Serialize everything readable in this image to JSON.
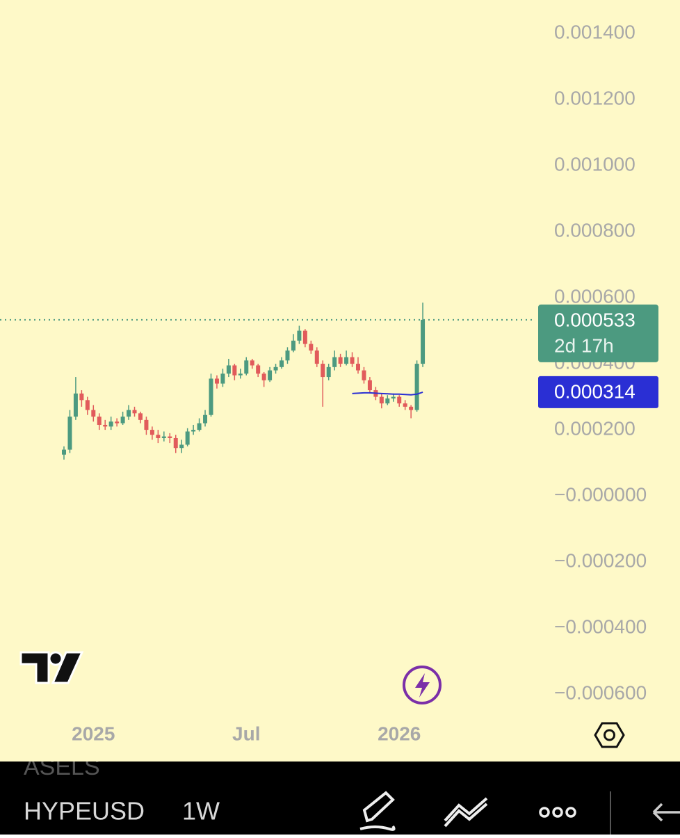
{
  "chart_data": {
    "type": "candlestick",
    "categories": [
      null,
      null,
      null,
      null,
      null,
      "2025",
      null,
      null,
      null,
      null,
      null,
      null,
      null,
      null,
      null,
      null,
      null,
      null,
      null,
      null,
      null,
      null,
      null,
      null,
      null,
      null,
      null,
      null,
      null,
      null,
      null,
      "Jul",
      null,
      null,
      null,
      null,
      null,
      null,
      null,
      null,
      null,
      null,
      null,
      null,
      null,
      null,
      null,
      null,
      null,
      null,
      null,
      null,
      null,
      null,
      null,
      null,
      null,
      "2026",
      null,
      null,
      null,
      null
    ],
    "open": [
      0.000125,
      0.00014,
      0.00024,
      0.00031,
      0.00029,
      0.00026,
      0.00024,
      0.000215,
      0.00021,
      0.000225,
      0.00022,
      0.00024,
      0.00026,
      0.00025,
      0.00023,
      0.0002,
      0.000185,
      0.000175,
      0.00018,
      0.000175,
      0.000145,
      0.000155,
      0.000195,
      0.0002,
      0.00022,
      0.000245,
      0.000355,
      0.00034,
      0.00037,
      0.000395,
      0.000365,
      0.00037,
      0.00041,
      0.000395,
      0.00037,
      0.00035,
      0.00038,
      0.00039,
      0.00041,
      0.00044,
      0.00047,
      0.0005,
      0.00046,
      0.00044,
      0.0004,
      0.00036,
      0.00039,
      0.00042,
      0.0004,
      0.00042,
      0.0004,
      0.00038,
      0.00035,
      0.00032,
      0.0003,
      0.00028,
      0.000295,
      0.0003,
      0.00028,
      0.00027,
      0.00026,
      0.0004
    ],
    "high": [
      0.00015,
      0.00026,
      0.00036,
      0.00032,
      0.0003,
      0.000275,
      0.00025,
      0.00023,
      0.00024,
      0.000235,
      0.000255,
      0.000275,
      0.00027,
      0.000255,
      0.00024,
      0.00021,
      0.0002,
      0.000195,
      0.00019,
      0.000185,
      0.00017,
      0.000205,
      0.000215,
      0.000235,
      0.00026,
      0.00037,
      0.000365,
      0.000385,
      0.000415,
      0.0004,
      0.000385,
      0.00042,
      0.000415,
      0.0004,
      0.000375,
      0.00039,
      0.0004,
      0.00042,
      0.00045,
      0.00049,
      0.000515,
      0.000505,
      0.00047,
      0.00045,
      0.00041,
      0.0004,
      0.00044,
      0.00043,
      0.00044,
      0.000435,
      0.00042,
      0.00039,
      0.00036,
      0.00033,
      0.00031,
      0.000305,
      0.00031,
      0.000305,
      0.00029,
      0.000275,
      0.00041,
      0.000585
    ],
    "low": [
      0.00011,
      0.00013,
      0.00023,
      0.00027,
      0.000245,
      0.000225,
      0.0002,
      0.0002,
      0.0002,
      0.00021,
      0.000215,
      0.00023,
      0.00024,
      0.00022,
      0.000185,
      0.00017,
      0.00016,
      0.000165,
      0.00016,
      0.00013,
      0.00013,
      0.00015,
      0.000185,
      0.000195,
      0.00021,
      0.00024,
      0.000325,
      0.00033,
      0.00036,
      0.00035,
      0.000355,
      0.000365,
      0.000385,
      0.00036,
      0.00033,
      0.000345,
      0.00037,
      0.000385,
      0.0004,
      0.000435,
      0.00046,
      0.00045,
      0.00043,
      0.00039,
      0.00027,
      0.00035,
      0.00038,
      0.00039,
      0.000395,
      0.00039,
      0.00037,
      0.00034,
      0.00031,
      0.00029,
      0.000265,
      0.000275,
      0.000285,
      0.00027,
      0.00026,
      0.000235,
      0.000255,
      0.00039
    ],
    "close": [
      0.00014,
      0.00024,
      0.00031,
      0.00029,
      0.00026,
      0.00024,
      0.000215,
      0.00021,
      0.000225,
      0.00022,
      0.00024,
      0.00026,
      0.00025,
      0.00023,
      0.0002,
      0.000185,
      0.000175,
      0.00018,
      0.000175,
      0.000145,
      0.000155,
      0.000195,
      0.0002,
      0.00022,
      0.000245,
      0.000355,
      0.00034,
      0.00037,
      0.000395,
      0.000365,
      0.00037,
      0.00041,
      0.000395,
      0.00037,
      0.00035,
      0.00038,
      0.00039,
      0.00041,
      0.00044,
      0.00047,
      0.0005,
      0.00046,
      0.00044,
      0.0004,
      0.00036,
      0.00039,
      0.00042,
      0.0004,
      0.00042,
      0.0004,
      0.00038,
      0.00035,
      0.00032,
      0.0003,
      0.00028,
      0.000295,
      0.0003,
      0.00028,
      0.00027,
      0.00026,
      0.0004,
      0.000533
    ],
    "up_color": "#4c9a80",
    "down_color": "#e15b5b",
    "ma_values": [
      null,
      null,
      null,
      null,
      null,
      null,
      null,
      null,
      null,
      null,
      null,
      null,
      null,
      null,
      null,
      null,
      null,
      null,
      null,
      null,
      null,
      null,
      null,
      null,
      null,
      null,
      null,
      null,
      null,
      null,
      null,
      null,
      null,
      null,
      null,
      null,
      null,
      null,
      null,
      null,
      null,
      null,
      null,
      null,
      null,
      null,
      null,
      null,
      null,
      0.00031,
      0.000311,
      0.000312,
      0.000312,
      0.000311,
      0.00031,
      0.000309,
      0.000308,
      0.000308,
      0.000307,
      0.000306,
      0.000308,
      0.000314
    ],
    "ma_color": "#2a2fd4",
    "ylim": [
      -0.000667,
      0.001501
    ],
    "yticks": [
      {
        "value": 0.0014,
        "label": "0.001400"
      },
      {
        "value": 0.0012,
        "label": "0.001200"
      },
      {
        "value": 0.001,
        "label": "0.001000"
      },
      {
        "value": 0.0008,
        "label": "0.000800"
      },
      {
        "value": 0.0006,
        "label": "0.000600"
      },
      {
        "value": 0.0004,
        "label": "0.000400"
      },
      {
        "value": 0.0002,
        "label": "0.000200"
      },
      {
        "value": 0,
        "label": "−0.000000"
      },
      {
        "value": -0.0002,
        "label": "−0.000200"
      },
      {
        "value": -0.0004,
        "label": "−0.000400"
      },
      {
        "value": -0.0006,
        "label": "−0.000600"
      }
    ],
    "last_price": 0.000533,
    "countdown": "2d 17h",
    "ma_last": 0.000314,
    "background": "#fef9c8"
  },
  "toolbar": {
    "behind": "ASELS",
    "symbol": "HYPEUSD",
    "interval": "1W"
  }
}
